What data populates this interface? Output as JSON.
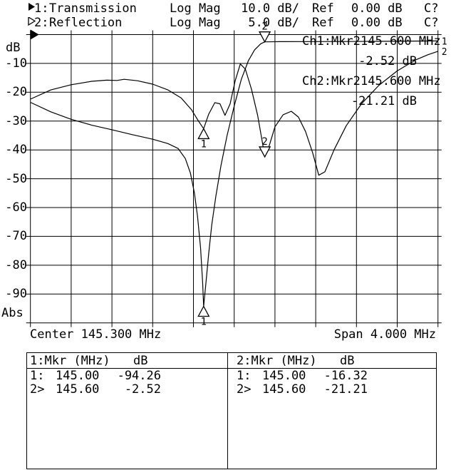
{
  "header": {
    "rows": [
      {
        "channel": "1:",
        "name": "Transmission",
        "format": "Log Mag",
        "scale": "10.0 dB/",
        "ref_label": "Ref",
        "ref_value": "0.00 dB",
        "status": "C?"
      },
      {
        "channel": "2:",
        "name": "Reflection",
        "format": "Log Mag",
        "scale": "5.0 dB/",
        "ref_label": "Ref",
        "ref_value": "0.00 dB",
        "status": "C?"
      }
    ]
  },
  "y_axis": {
    "unit": "dB",
    "tick_labels": [
      "-10",
      "-20",
      "-30",
      "-40",
      "-50",
      "-60",
      "-70",
      "-80",
      "-90"
    ],
    "bottom_label": "Abs"
  },
  "x_axis": {
    "center": "Center 145.300 MHz",
    "span": "Span 4.000 MHz"
  },
  "marker_readout": {
    "ch1": {
      "label": "Ch1:Mkr2",
      "freq": "145.600 MHz",
      "value": "-2.52 dB"
    },
    "ch2": {
      "label": "Ch2:Mkr2",
      "freq": "145.600 MHz",
      "value": "-21.21 dB"
    }
  },
  "chart_data": {
    "type": "line",
    "title": "",
    "x_start_mhz": 143.3,
    "x_stop_mhz": 147.3,
    "center_mhz": 145.3,
    "span_mhz": 4.0,
    "grid": {
      "x_divisions": 10,
      "y_divisions": 10,
      "grid_on": true
    },
    "series": [
      {
        "name": "Transmission",
        "channel": 1,
        "scale_db_per_div": 10.0,
        "ref_db": 0.0,
        "full_scale_db": 100,
        "end_label": "1",
        "points": [
          [
            143.3,
            -23.5
          ],
          [
            143.5,
            -26.8
          ],
          [
            143.7,
            -29.4
          ],
          [
            143.9,
            -31.4
          ],
          [
            144.1,
            -33.0
          ],
          [
            144.3,
            -34.7
          ],
          [
            144.5,
            -36.3
          ],
          [
            144.65,
            -37.8
          ],
          [
            144.75,
            -39.5
          ],
          [
            144.82,
            -43.0
          ],
          [
            144.87,
            -48.0
          ],
          [
            144.91,
            -55.0
          ],
          [
            144.94,
            -63.0
          ],
          [
            144.97,
            -74.0
          ],
          [
            144.99,
            -86.0
          ],
          [
            145.0,
            -94.26
          ],
          [
            145.02,
            -87.0
          ],
          [
            145.05,
            -76.0
          ],
          [
            145.08,
            -66.0
          ],
          [
            145.12,
            -56.0
          ],
          [
            145.17,
            -45.5
          ],
          [
            145.23,
            -35.0
          ],
          [
            145.3,
            -24.8
          ],
          [
            145.37,
            -15.5
          ],
          [
            145.44,
            -9.0
          ],
          [
            145.5,
            -5.3
          ],
          [
            145.56,
            -3.2
          ],
          [
            145.6,
            -2.52
          ],
          [
            145.75,
            -2.45
          ],
          [
            146.0,
            -2.42
          ],
          [
            146.4,
            -2.4
          ],
          [
            146.8,
            -2.32
          ],
          [
            147.3,
            -2.2
          ]
        ]
      },
      {
        "name": "Reflection",
        "channel": 2,
        "scale_db_per_div": 5.0,
        "ref_db": 0.0,
        "full_scale_db": 50,
        "end_label": "2",
        "points": [
          [
            143.3,
            -11.2
          ],
          [
            143.5,
            -9.6
          ],
          [
            143.7,
            -8.7
          ],
          [
            143.9,
            -8.1
          ],
          [
            144.05,
            -7.9
          ],
          [
            144.15,
            -7.95
          ],
          [
            144.22,
            -7.75
          ],
          [
            144.35,
            -8.0
          ],
          [
            144.5,
            -8.6
          ],
          [
            144.65,
            -9.6
          ],
          [
            144.78,
            -11.0
          ],
          [
            144.88,
            -13.0
          ],
          [
            144.95,
            -15.0
          ],
          [
            145.0,
            -16.32
          ],
          [
            145.05,
            -13.8
          ],
          [
            145.11,
            -11.8
          ],
          [
            145.16,
            -12.0
          ],
          [
            145.21,
            -14.0
          ],
          [
            145.26,
            -12.0
          ],
          [
            145.31,
            -8.0
          ],
          [
            145.36,
            -5.1
          ],
          [
            145.41,
            -6.0
          ],
          [
            145.47,
            -9.5
          ],
          [
            145.53,
            -14.0
          ],
          [
            145.58,
            -19.0
          ],
          [
            145.6,
            -21.21
          ],
          [
            145.64,
            -19.5
          ],
          [
            145.7,
            -16.0
          ],
          [
            145.78,
            -13.9
          ],
          [
            145.86,
            -13.3
          ],
          [
            145.93,
            -14.3
          ],
          [
            146.0,
            -16.8
          ],
          [
            146.07,
            -20.5
          ],
          [
            146.13,
            -24.4
          ],
          [
            146.19,
            -23.8
          ],
          [
            146.28,
            -20.0
          ],
          [
            146.4,
            -15.8
          ],
          [
            146.55,
            -12.0
          ],
          [
            146.72,
            -8.8
          ],
          [
            146.9,
            -6.3
          ],
          [
            147.08,
            -4.4
          ],
          [
            147.2,
            -3.5
          ],
          [
            147.3,
            -2.9
          ]
        ]
      }
    ],
    "markers": [
      {
        "channel": 1,
        "label": "1",
        "freq_mhz": 145.0,
        "value_db": -94.26,
        "orientation": "up"
      },
      {
        "channel": 1,
        "label": "2",
        "freq_mhz": 145.6,
        "value_db": -2.52,
        "orientation": "down"
      },
      {
        "channel": 2,
        "label": "1",
        "freq_mhz": 145.0,
        "value_db": -16.32,
        "orientation": "up"
      },
      {
        "channel": 2,
        "label": "2",
        "freq_mhz": 145.6,
        "value_db": -21.21,
        "orientation": "down"
      }
    ],
    "colors": {
      "foreground": "#000000",
      "background": "#ffffff"
    }
  },
  "marker_table": {
    "ch1": {
      "header": "1:Mkr (MHz)",
      "unit": "dB",
      "rows": [
        {
          "num": "1:",
          "freq": "145.00",
          "value": "-94.26"
        },
        {
          "num": "2>",
          "freq": "145.60",
          "value": "-2.52"
        }
      ]
    },
    "ch2": {
      "header": "2:Mkr (MHz)",
      "unit": "dB",
      "rows": [
        {
          "num": "1:",
          "freq": "145.00",
          "value": "-16.32"
        },
        {
          "num": "2>",
          "freq": "145.60",
          "value": "-21.21"
        }
      ]
    }
  }
}
